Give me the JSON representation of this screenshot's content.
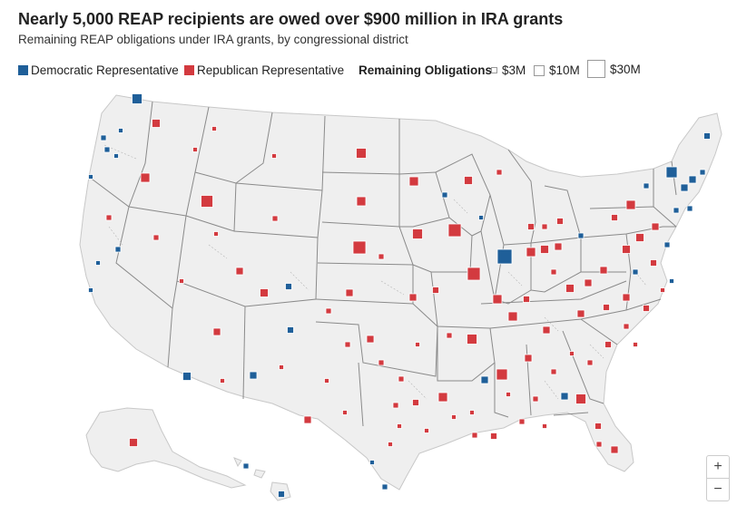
{
  "header": {
    "title": "Nearly 5,000 REAP recipients are owed over $900 million in IRA grants",
    "subtitle": "Remaining REAP obligations under IRA grants, by congressional district"
  },
  "legend": {
    "party": [
      {
        "label": "Democratic Representative",
        "color": "#1f5f99"
      },
      {
        "label": "Republican Representative",
        "color": "#d33a3f"
      }
    ],
    "size_title": "Remaining Obligations",
    "sizes": [
      {
        "label": "$3M",
        "value": 3
      },
      {
        "label": "$10M",
        "value": 10
      },
      {
        "label": "$30M",
        "value": 30
      }
    ]
  },
  "zoom": {
    "in_label": "+",
    "out_label": "−"
  },
  "colors": {
    "land": "#efefef",
    "border": "#ffffff",
    "state_border": "#8a8a8a"
  }
}
